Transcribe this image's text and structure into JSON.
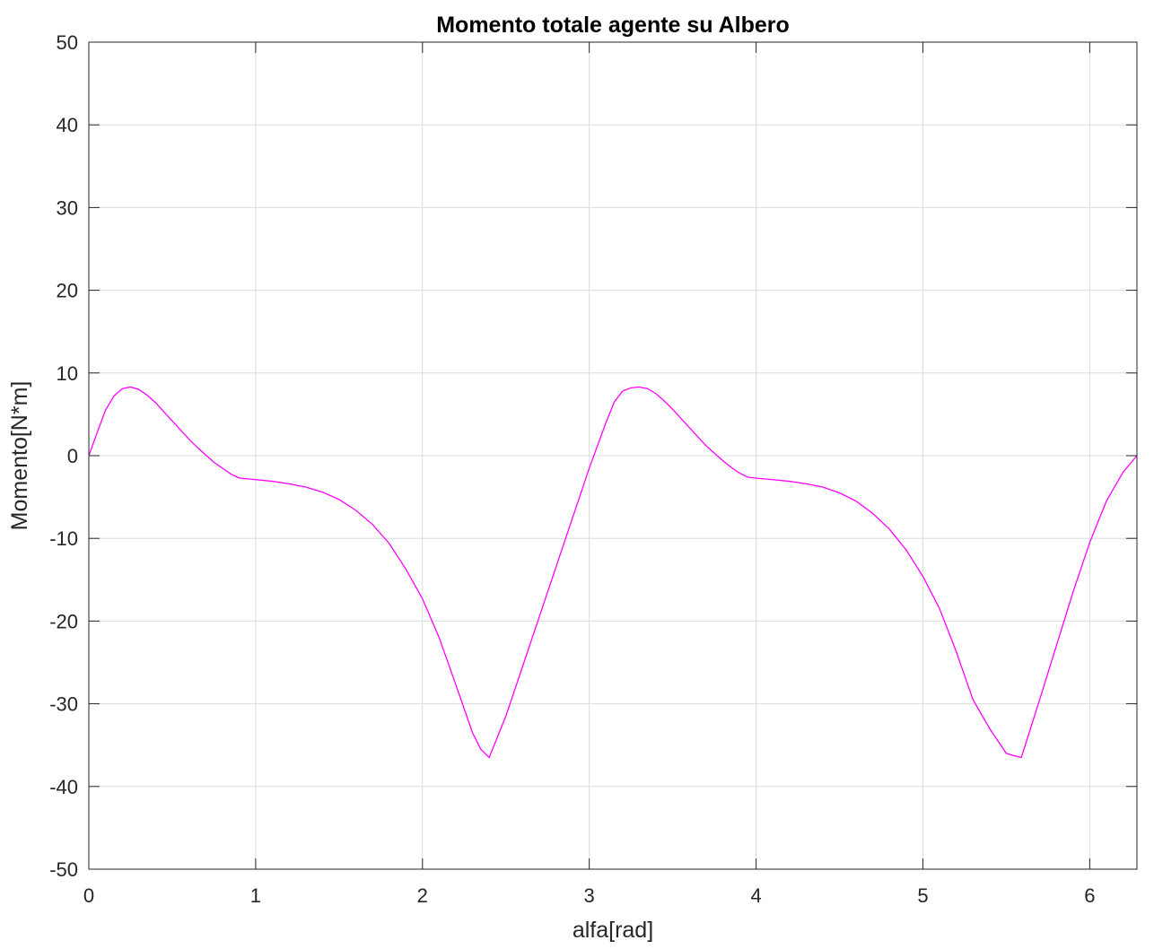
{
  "chart_data": {
    "type": "line",
    "title": "Momento totale agente su Albero",
    "xlabel": "alfa[rad]",
    "ylabel": "Momento[N*m]",
    "xlim": [
      0,
      6.2832
    ],
    "ylim": [
      -50,
      50
    ],
    "xticks": [
      0,
      1,
      2,
      3,
      4,
      5,
      6
    ],
    "xtick_labels": [
      "0",
      "1",
      "2",
      "3",
      "4",
      "5",
      "6"
    ],
    "yticks": [
      -50,
      -40,
      -30,
      -20,
      -10,
      0,
      10,
      20,
      30,
      40,
      50
    ],
    "ytick_labels": [
      "-50",
      "-40",
      "-30",
      "-20",
      "-10",
      "0",
      "10",
      "20",
      "30",
      "40",
      "50"
    ],
    "grid": true,
    "line_color": "#ff00ff",
    "series": [
      {
        "x": [
          0,
          0.05,
          0.1,
          0.15,
          0.2,
          0.25,
          0.3,
          0.35,
          0.4,
          0.45,
          0.5,
          0.55,
          0.6,
          0.65,
          0.7,
          0.75,
          0.8,
          0.85,
          0.9,
          1.0,
          1.1,
          1.2,
          1.3,
          1.4,
          1.5,
          1.6,
          1.7,
          1.8,
          1.9,
          2.0,
          2.1,
          2.2,
          2.3,
          2.35,
          2.4,
          2.5,
          2.6,
          2.7,
          2.8,
          2.9,
          3.0,
          3.1,
          3.15,
          3.2,
          3.25,
          3.3,
          3.35,
          3.4,
          3.45,
          3.5,
          3.55,
          3.6,
          3.65,
          3.7,
          3.75,
          3.8,
          3.85,
          3.9,
          3.95,
          3.99,
          4.1,
          4.2,
          4.3,
          4.4,
          4.5,
          4.6,
          4.7,
          4.8,
          4.9,
          5.0,
          5.1,
          5.2,
          5.3,
          5.4,
          5.5,
          5.55,
          5.59,
          5.7,
          5.8,
          5.9,
          6.0,
          6.1,
          6.2,
          6.2832
        ],
        "y": [
          0,
          2.8,
          5.5,
          7.2,
          8.1,
          8.3,
          8.0,
          7.3,
          6.4,
          5.3,
          4.2,
          3.1,
          2.0,
          1.0,
          0.1,
          -0.8,
          -1.5,
          -2.2,
          -2.7,
          -2.9,
          -3.1,
          -3.4,
          -3.8,
          -4.4,
          -5.3,
          -6.6,
          -8.3,
          -10.6,
          -13.7,
          -17.3,
          -22.0,
          -27.7,
          -33.5,
          -35.5,
          -36.5,
          -31.5,
          -25.5,
          -19.5,
          -13.5,
          -7.5,
          -1.5,
          4.0,
          6.5,
          7.8,
          8.2,
          8.3,
          8.1,
          7.5,
          6.6,
          5.6,
          4.5,
          3.4,
          2.3,
          1.2,
          0.3,
          -0.6,
          -1.4,
          -2.1,
          -2.6,
          -2.7,
          -2.9,
          -3.1,
          -3.4,
          -3.8,
          -4.5,
          -5.5,
          -7.0,
          -8.9,
          -11.4,
          -14.6,
          -18.5,
          -23.7,
          -29.5,
          -33.0,
          -36.0,
          -36.3,
          -36.5,
          -29.5,
          -23.0,
          -16.5,
          -10.5,
          -5.5,
          -2.0,
          0
        ]
      }
    ]
  }
}
